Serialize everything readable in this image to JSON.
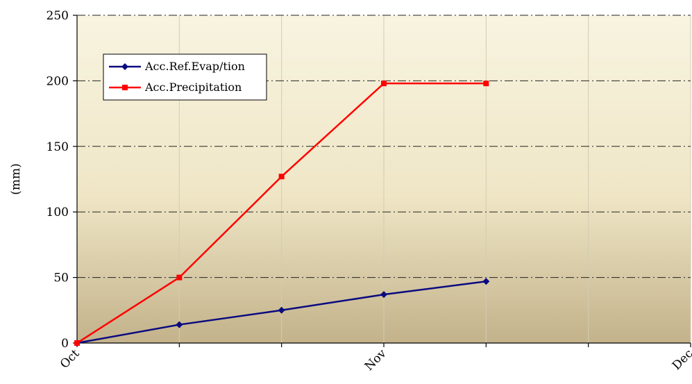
{
  "chart_data": {
    "type": "line",
    "ylabel": "(mm)",
    "ylim": [
      0,
      250
    ],
    "yticks": [
      0,
      50,
      100,
      150,
      200,
      250
    ],
    "x_positions": [
      0,
      1,
      2,
      3,
      4,
      5,
      6
    ],
    "x_tick_labels": [
      {
        "pos": 0,
        "label": "Oct"
      },
      {
        "pos": 3,
        "label": "Nov"
      },
      {
        "pos": 6,
        "label": "Dec"
      }
    ],
    "grid": {
      "vertical": "on",
      "horizontal": "dash-dot"
    },
    "legend_placement": "top-left",
    "series": [
      {
        "name": "Acc.Ref.Evap/tion",
        "color": "#0a0a80",
        "marker": "diamond",
        "x": [
          0,
          1,
          2,
          3,
          4
        ],
        "values": [
          0,
          14,
          25,
          37,
          47
        ]
      },
      {
        "name": "Acc.Precipitation",
        "color": "#ff0000",
        "marker": "square",
        "x": [
          0,
          1,
          2,
          3,
          4
        ],
        "values": [
          0,
          50,
          127,
          198,
          198
        ]
      }
    ]
  }
}
